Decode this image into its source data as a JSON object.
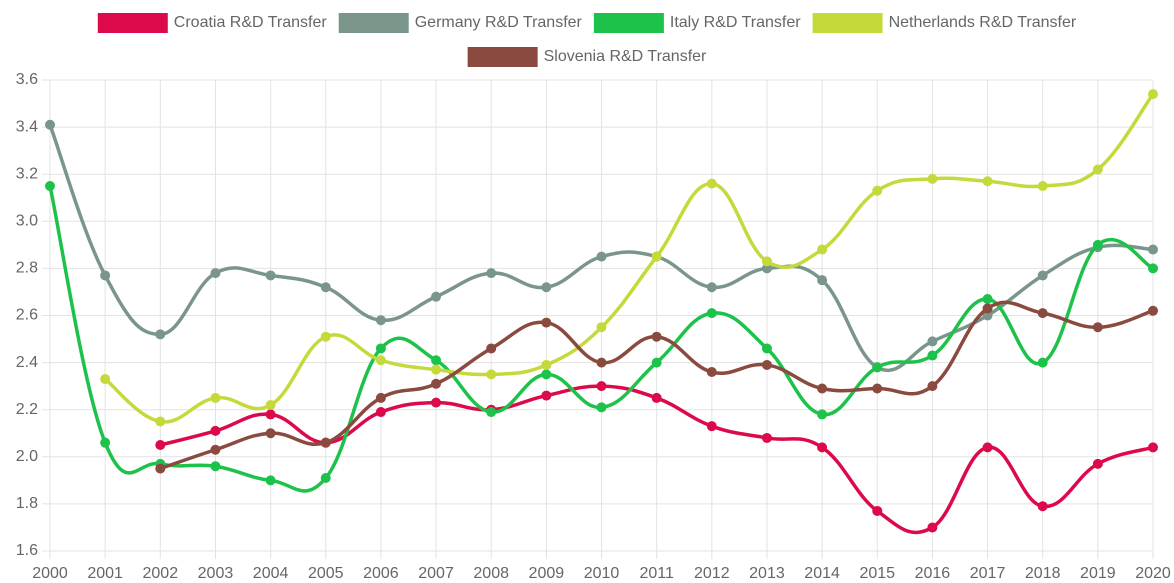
{
  "chart_data": {
    "type": "line",
    "categories": [
      "2000",
      "2001",
      "2002",
      "2003",
      "2004",
      "2005",
      "2006",
      "2007",
      "2008",
      "2009",
      "2010",
      "2011",
      "2012",
      "2013",
      "2014",
      "2015",
      "2016",
      "2017",
      "2018",
      "2019",
      "2020"
    ],
    "series": [
      {
        "name": "Croatia R&D Transfer",
        "color": "#dc0a4a",
        "values": [
          null,
          null,
          2.05,
          2.11,
          2.18,
          2.06,
          2.19,
          2.23,
          2.2,
          2.26,
          2.3,
          2.25,
          2.13,
          2.08,
          2.04,
          1.77,
          1.7,
          2.04,
          1.79,
          1.97,
          2.04
        ]
      },
      {
        "name": "Germany R&D Transfer",
        "color": "#7a968a",
        "values": [
          3.41,
          2.77,
          2.52,
          2.78,
          2.77,
          2.72,
          2.58,
          2.68,
          2.78,
          2.72,
          2.85,
          2.85,
          2.72,
          2.8,
          2.75,
          2.38,
          2.49,
          2.6,
          2.77,
          2.89,
          2.88
        ]
      },
      {
        "name": "Italy R&D Transfer",
        "color": "#1dc24a",
        "values": [
          3.15,
          2.06,
          1.97,
          1.96,
          1.9,
          1.91,
          2.46,
          2.41,
          2.19,
          2.35,
          2.21,
          2.4,
          2.61,
          2.46,
          2.18,
          2.38,
          2.43,
          2.67,
          2.4,
          2.9,
          2.8
        ]
      },
      {
        "name": "Netherlands R&D Transfer",
        "color": "#c6d93a",
        "values": [
          null,
          2.33,
          2.15,
          2.25,
          2.22,
          2.51,
          2.41,
          2.37,
          2.35,
          2.39,
          2.55,
          2.85,
          3.16,
          2.83,
          2.88,
          3.13,
          3.18,
          3.17,
          3.15,
          3.22,
          3.54
        ]
      },
      {
        "name": "Slovenia R&D Transfer",
        "color": "#8b4a3f",
        "values": [
          null,
          null,
          1.95,
          2.03,
          2.1,
          2.06,
          2.25,
          2.31,
          2.46,
          2.57,
          2.4,
          2.51,
          2.36,
          2.39,
          2.29,
          2.29,
          2.3,
          2.63,
          2.61,
          2.55,
          2.62
        ]
      }
    ],
    "ylim": [
      1.6,
      3.6
    ],
    "yticks": [
      1.6,
      1.8,
      {
        "value": 2,
        "label": "2.0"
      },
      2.2,
      2.4,
      2.6,
      2.8,
      {
        "value": 3,
        "label": "3.0"
      },
      3.2,
      3.4,
      3.6
    ],
    "grid": true,
    "legend": "top"
  }
}
